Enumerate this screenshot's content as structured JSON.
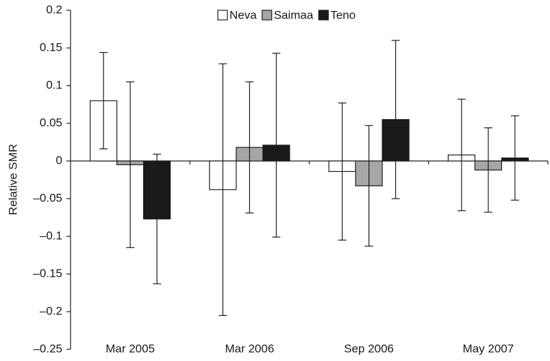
{
  "chart_data": {
    "type": "bar",
    "y_label": "Relative SMR",
    "categories": [
      "Mar 2005",
      "Mar 2006",
      "Sep 2006",
      "May 2007"
    ],
    "series": [
      {
        "name": "Neva",
        "color": "#ffffff",
        "values": [
          0.08,
          -0.038,
          -0.014,
          0.008
        ],
        "errors": [
          0.064,
          0.167,
          0.091,
          0.074
        ]
      },
      {
        "name": "Saimaa",
        "color": "#a6a6a6",
        "values": [
          -0.005,
          0.018,
          -0.033,
          -0.012
        ],
        "errors": [
          0.11,
          0.087,
          0.08,
          0.056
        ]
      },
      {
        "name": "Teno",
        "color": "#1a1a1a",
        "values": [
          -0.077,
          0.021,
          0.055,
          0.004
        ],
        "errors": [
          0.086,
          0.122,
          0.105,
          0.056
        ]
      }
    ],
    "ylim": [
      -0.25,
      0.2
    ],
    "yticks": [
      {
        "value": -0.25,
        "label": "–0.25"
      },
      {
        "value": -0.2,
        "label": "–0.2"
      },
      {
        "value": -0.15,
        "label": "–0.15"
      },
      {
        "value": -0.1,
        "label": "–0.1"
      },
      {
        "value": -0.05,
        "label": "–0.05"
      },
      0,
      0.05,
      0.1,
      0.15,
      0.2
    ],
    "legend": "top"
  }
}
